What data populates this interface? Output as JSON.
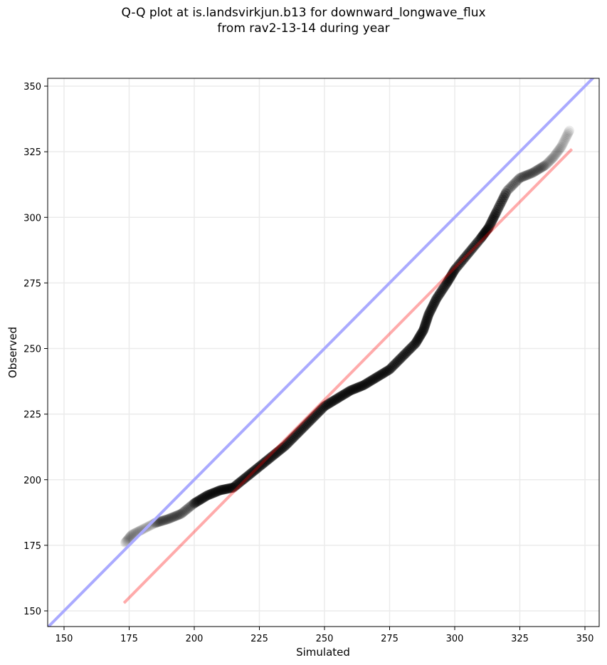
{
  "chart_data": {
    "type": "scatter",
    "title_line1": "Q-Q plot at is.landsvirkjun.b13 for downward_longwave_flux",
    "title_line2": "from rav2-13-14 during year",
    "xlabel": "Simulated",
    "ylabel": "Observed",
    "xlim": [
      143.7,
      353.5
    ],
    "ylim": [
      144,
      353
    ],
    "xticks": [
      150,
      175,
      200,
      225,
      250,
      275,
      300,
      325,
      350
    ],
    "yticks": [
      150,
      175,
      200,
      225,
      250,
      275,
      300,
      325,
      350
    ],
    "xtick_labels": [
      "150",
      "175",
      "200",
      "225",
      "250",
      "275",
      "300",
      "325",
      "350"
    ],
    "ytick_labels": [
      "150",
      "175",
      "200",
      "225",
      "250",
      "275",
      "300",
      "325",
      "350"
    ],
    "grid": true,
    "reference_line": {
      "name": "1:1 line",
      "color": "#aaaaff",
      "x": [
        143.7,
        353.5
      ],
      "y": [
        143.7,
        353.5
      ]
    },
    "fit_line": {
      "name": "fit line",
      "color": "#ffaaaa",
      "x": [
        173,
        345
      ],
      "y": [
        153,
        326
      ]
    },
    "series": [
      {
        "name": "quantiles",
        "color": "#000000",
        "x": [
          173.5,
          176,
          180,
          185,
          190,
          195,
          200,
          205,
          210,
          215,
          220,
          225,
          230,
          235,
          240,
          245,
          250,
          255,
          260,
          265,
          270,
          275,
          280,
          285,
          288,
          290,
          293,
          297,
          300,
          305,
          310,
          313,
          316,
          320,
          325,
          330,
          335,
          338,
          341,
          344
        ],
        "y": [
          176,
          179,
          181,
          183.5,
          185,
          187,
          191,
          194,
          196,
          197,
          201,
          205,
          209,
          213,
          218,
          223,
          228,
          231,
          234,
          236,
          239,
          242,
          247,
          252,
          257,
          263,
          269,
          275,
          280,
          286,
          292,
          296,
          302,
          310,
          315,
          317,
          320,
          323,
          327,
          333
        ]
      }
    ]
  }
}
